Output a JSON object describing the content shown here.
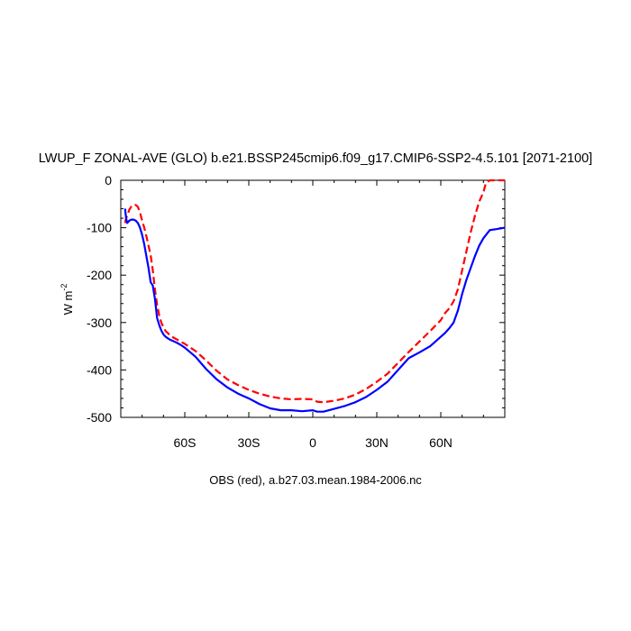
{
  "chart_data": {
    "type": "line",
    "title": "LWUP_F ZONAL-AVE (GLO) b.e21.BSSP245cmip6.f09_g17.CMIP6-SSP2-4.5.101 [2071-2100]",
    "ylabel": "W m",
    "ylabel_exp": "-2",
    "xlabel": "",
    "caption": "OBS (red), a.b27.03.mean.1984-2006.nc",
    "xlim": [
      -90,
      90
    ],
    "ylim": [
      -500,
      0
    ],
    "xticks": [
      {
        "value": -60,
        "label": "60S"
      },
      {
        "value": -30,
        "label": "30S"
      },
      {
        "value": 0,
        "label": "0"
      },
      {
        "value": 30,
        "label": "30N"
      },
      {
        "value": 60,
        "label": "60N"
      }
    ],
    "yticks": [
      {
        "value": 0,
        "label": "0"
      },
      {
        "value": -100,
        "label": "-100"
      },
      {
        "value": -200,
        "label": "-200"
      },
      {
        "value": -300,
        "label": "-300"
      },
      {
        "value": -400,
        "label": "-400"
      },
      {
        "value": -500,
        "label": "-500"
      }
    ],
    "series": [
      {
        "name": "model",
        "color": "#0000ff",
        "dash": "solid",
        "x": [
          -88,
          -87.5,
          -87,
          -86,
          -85,
          -84,
          -83,
          -82,
          -81,
          -80,
          -79,
          -78,
          -77,
          -76,
          -75,
          -74,
          -73,
          -72,
          -71,
          -70,
          -69,
          -68,
          -67,
          -66,
          -65,
          -64,
          -62,
          -60,
          -55,
          -50,
          -45,
          -40,
          -35,
          -30,
          -25,
          -20,
          -15,
          -10,
          -5,
          0,
          2,
          5,
          10,
          15,
          20,
          25,
          30,
          35,
          40,
          45,
          50,
          55,
          60,
          62,
          64,
          66,
          68,
          70,
          72,
          74,
          76,
          78,
          80,
          83,
          86,
          90
        ],
        "y": [
          -60,
          -80,
          -90,
          -85,
          -83,
          -83,
          -85,
          -90,
          -100,
          -115,
          -135,
          -160,
          -185,
          -215,
          -222,
          -250,
          -290,
          -305,
          -317,
          -325,
          -330,
          -333,
          -336,
          -338,
          -340,
          -342,
          -347,
          -353,
          -372,
          -398,
          -420,
          -437,
          -450,
          -460,
          -472,
          -481,
          -485,
          -485,
          -487,
          -485,
          -488,
          -488,
          -482,
          -476,
          -468,
          -457,
          -442,
          -425,
          -400,
          -375,
          -363,
          -350,
          -330,
          -322,
          -312,
          -300,
          -275,
          -240,
          -210,
          -185,
          -160,
          -138,
          -122,
          -105,
          -103,
          -100
        ]
      },
      {
        "name": "OBS",
        "color": "#ff0000",
        "dash": "dashed",
        "x": [
          -88,
          -87.5,
          -87,
          -86,
          -85,
          -84,
          -83,
          -82,
          -81,
          -80,
          -79,
          -78,
          -77,
          -76,
          -75,
          -74,
          -73,
          -72,
          -71,
          -70,
          -69,
          -68,
          -67,
          -66,
          -64,
          -60,
          -55,
          -50,
          -45,
          -40,
          -35,
          -30,
          -25,
          -20,
          -15,
          -10,
          -5,
          0,
          2,
          5,
          10,
          15,
          20,
          25,
          30,
          35,
          40,
          45,
          50,
          55,
          60,
          62,
          64,
          66,
          68,
          70,
          72,
          74,
          76,
          78,
          80,
          81,
          82,
          83,
          86,
          90
        ],
        "y": [
          -90,
          -80,
          -75,
          -62,
          -55,
          -52,
          -52,
          -56,
          -68,
          -85,
          -100,
          -118,
          -138,
          -158,
          -190,
          -230,
          -262,
          -285,
          -300,
          -310,
          -318,
          -322,
          -327,
          -330,
          -335,
          -345,
          -360,
          -380,
          -402,
          -420,
          -432,
          -442,
          -450,
          -456,
          -460,
          -462,
          -461,
          -462,
          -467,
          -468,
          -465,
          -460,
          -452,
          -440,
          -425,
          -408,
          -385,
          -362,
          -340,
          -318,
          -295,
          -280,
          -270,
          -255,
          -230,
          -190,
          -150,
          -110,
          -75,
          -45,
          -25,
          -8,
          -3,
          0,
          0,
          0
        ]
      }
    ]
  }
}
